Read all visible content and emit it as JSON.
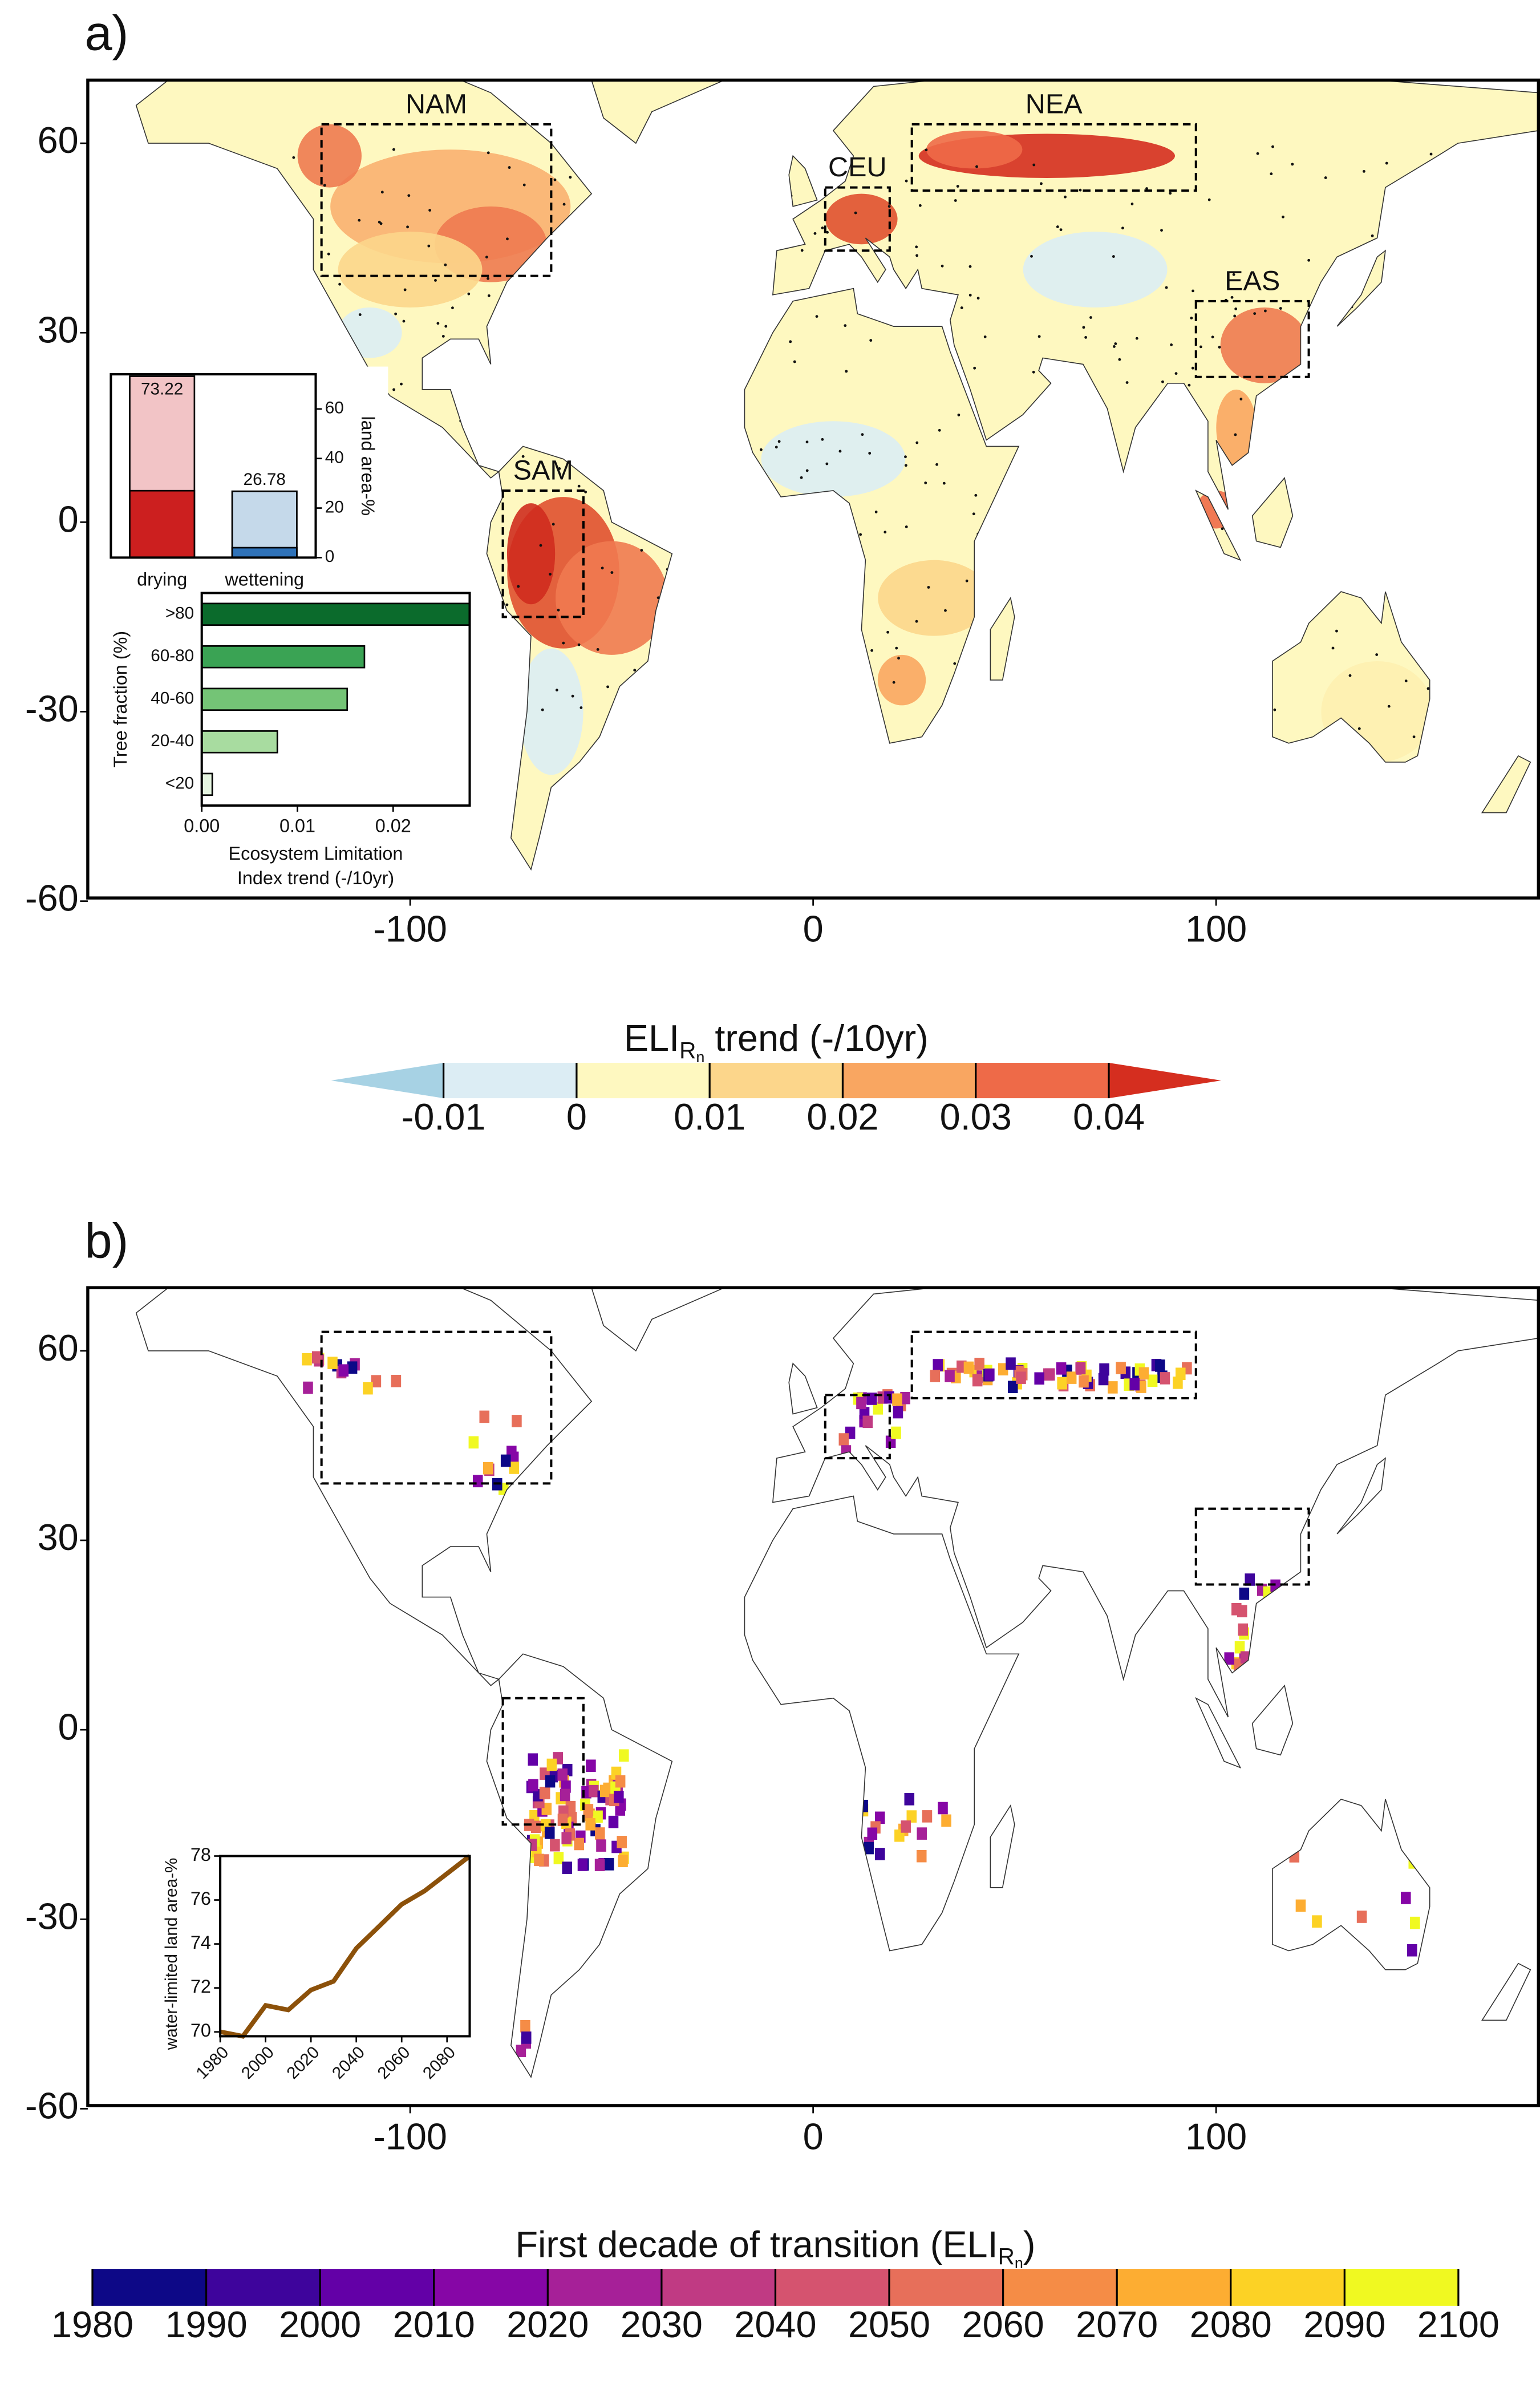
{
  "chart_data": [
    {
      "type": "map",
      "panel_label": "a)",
      "xlim": [
        -180,
        180
      ],
      "ylim": [
        -59.5,
        70
      ],
      "xticks": [
        -100,
        0,
        100
      ],
      "yticks": [
        -60,
        -30,
        0,
        30,
        60
      ],
      "regions": [
        {
          "name": "NAM",
          "lon": [
            -122,
            -65
          ],
          "lat": [
            39,
            63
          ]
        },
        {
          "name": "CEU",
          "lon": [
            3,
            19
          ],
          "lat": [
            43,
            53
          ]
        },
        {
          "name": "NEA",
          "lon": [
            24.5,
            95
          ],
          "lat": [
            52.5,
            63
          ]
        },
        {
          "name": "EAS",
          "lon": [
            95,
            123
          ],
          "lat": [
            23,
            35
          ]
        },
        {
          "name": "SAM",
          "lon": [
            -77,
            -57
          ],
          "lat": [
            -15,
            5
          ]
        }
      ],
      "colorbar": {
        "title": "ELI",
        "title_sub": "R",
        "title_subsub": "n",
        "title_after": " trend (-/10yr)",
        "ticks": [
          -0.01,
          0,
          0.01,
          0.02,
          0.03,
          0.04
        ],
        "extend": "both",
        "colors": [
          "#a7d2e4",
          "#dcedf4",
          "#fef8c0",
          "#fcd68b",
          "#f9a661",
          "#ee6a48",
          "#d52e1f"
        ]
      }
    },
    {
      "type": "bar",
      "categories": [
        "drying",
        "wettening"
      ],
      "values": [
        73.22,
        26.78
      ],
      "value_labels": [
        "73.22",
        "26.78"
      ],
      "colors": [
        "#f2c4c6",
        "#c5d9ea"
      ],
      "significant_values": [
        27,
        4
      ],
      "significant_colors": [
        "#cc1f1f",
        "#2f72b8"
      ],
      "ylim": [
        0,
        74
      ],
      "yticks": [
        0,
        20,
        40,
        60
      ],
      "ylabel": "land area-%"
    },
    {
      "type": "hbar",
      "categories": [
        "<20",
        "20-40",
        "40-60",
        "60-80",
        ">80"
      ],
      "values": [
        0.0011,
        0.0079,
        0.0152,
        0.017,
        0.028
      ],
      "colors": [
        "#e5f5e0",
        "#a8dca0",
        "#74c476",
        "#3aa354",
        "#0b6b2c"
      ],
      "xlim": [
        0,
        0.028
      ],
      "xticks": [
        {
          "value": 0,
          "label": "0.00"
        },
        0.01,
        0.02
      ],
      "ylabel": "Tree fraction (%)",
      "xlabel": [
        "Ecosystem Limitation",
        "Index trend (-/10yr)"
      ]
    },
    {
      "type": "map",
      "panel_label": "b)",
      "xlim": [
        -180,
        180
      ],
      "ylim": [
        -59.5,
        70
      ],
      "xticks": [
        -100,
        0,
        100
      ],
      "yticks": [
        -60,
        -30,
        0,
        30,
        60
      ],
      "colorbar": {
        "title": "First decade of transition (ELI",
        "title_sub": "R",
        "title_subsub": "n",
        "title_after": ")",
        "ticks": [
          1980,
          1990,
          2000,
          2010,
          2020,
          2030,
          2040,
          2050,
          2060,
          2070,
          2080,
          2090,
          2100
        ],
        "extend": "none",
        "colors": [
          "#0d0887",
          "#3e049c",
          "#6300a7",
          "#8606a6",
          "#a62098",
          "#c03a83",
          "#d5536f",
          "#e76f5a",
          "#f58c46",
          "#fdad32",
          "#fcd225",
          "#f0f921"
        ]
      }
    },
    {
      "type": "line",
      "x": [
        1980,
        1990,
        2000,
        2010,
        2020,
        2030,
        2040,
        2050,
        2060,
        2070,
        2080,
        2090
      ],
      "values": [
        70.0,
        69.8,
        71.2,
        71.0,
        71.9,
        72.3,
        73.8,
        74.8,
        75.8,
        76.4,
        77.2,
        78.0
      ],
      "color": "#8c510a",
      "xlim": [
        1980,
        2090
      ],
      "ylim": [
        69.8,
        78
      ],
      "xticks": [
        1980,
        2000,
        2020,
        2040,
        2060,
        2080
      ],
      "yticks": [
        70,
        72,
        74,
        76,
        78
      ],
      "ylabel": "water-limited land area-%"
    }
  ]
}
